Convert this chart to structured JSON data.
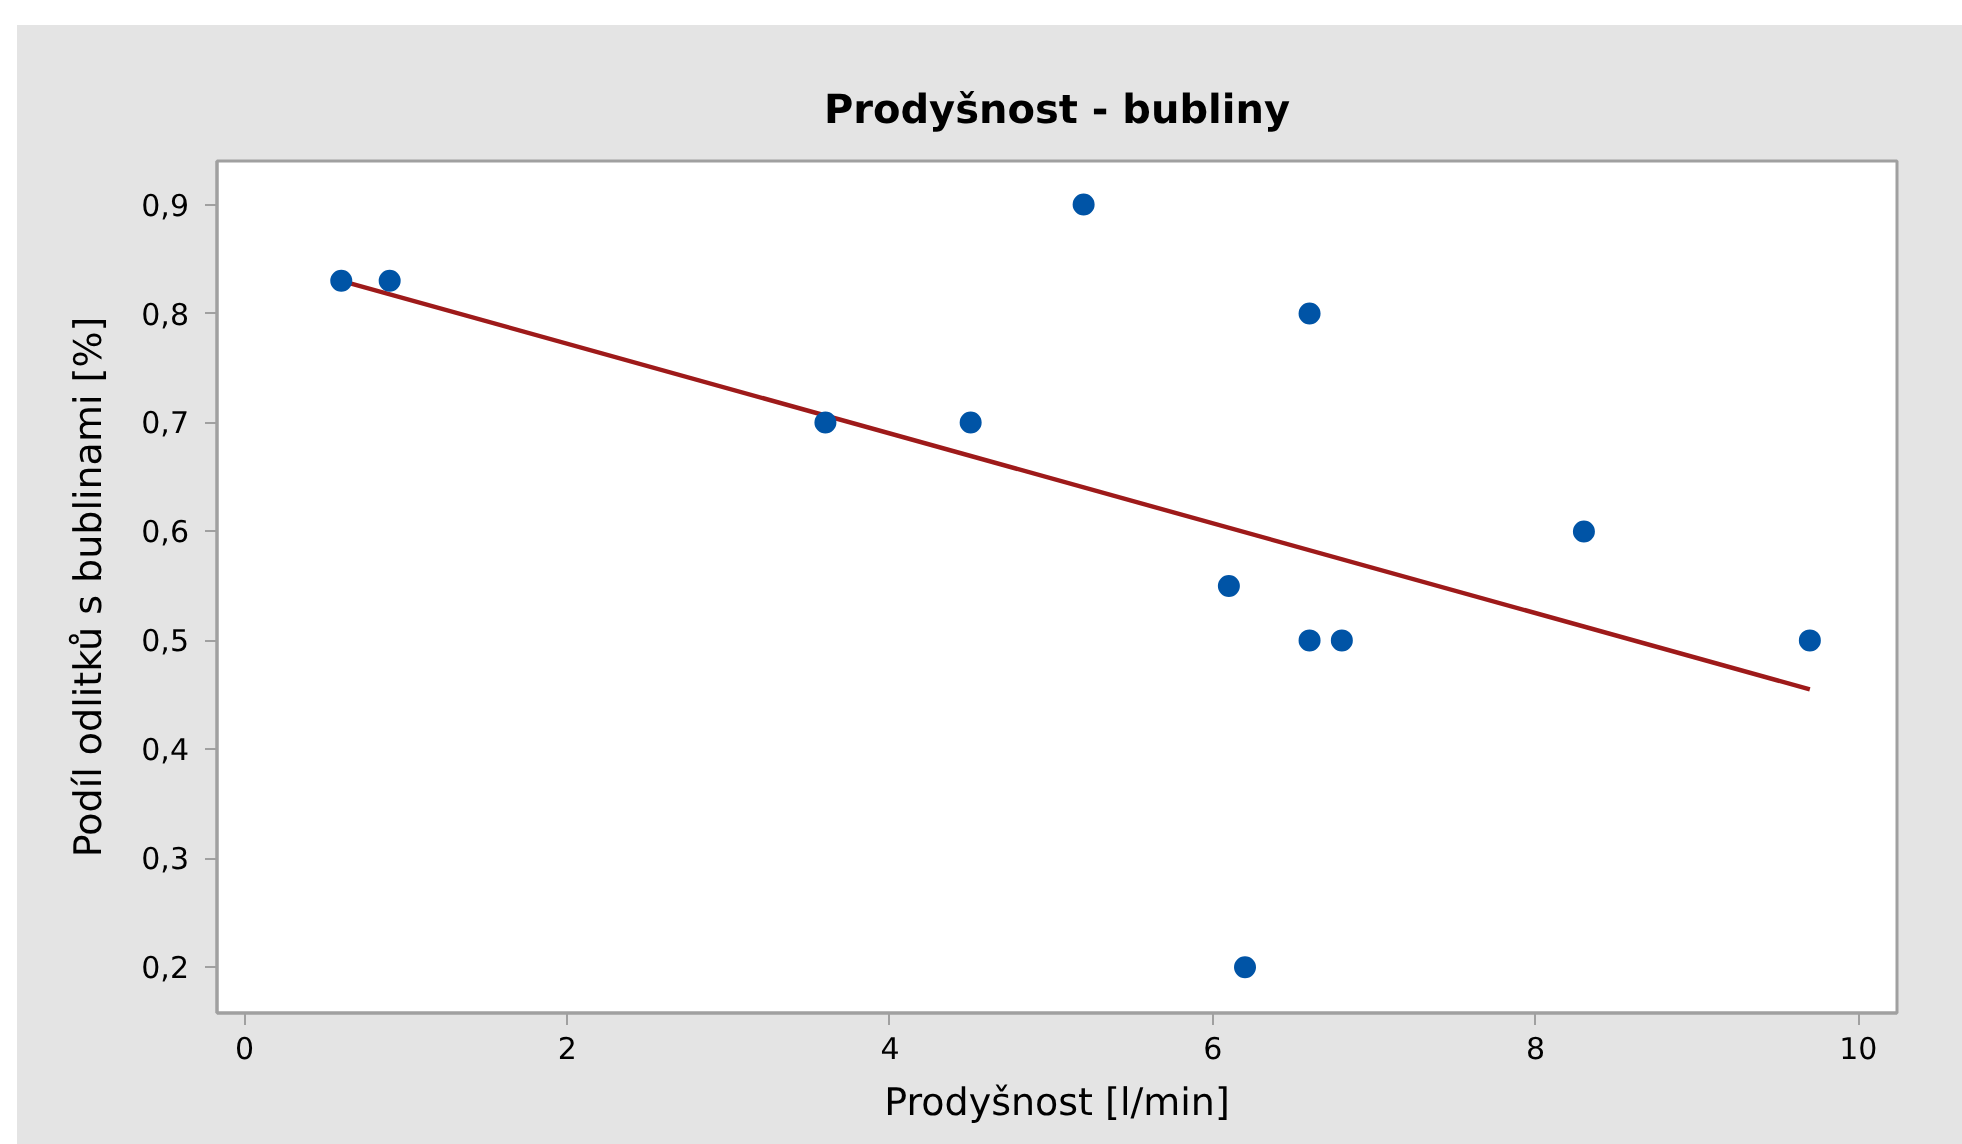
{
  "chart_data": {
    "type": "scatter",
    "title": "Prodyšnost - bubliny",
    "xlabel": "Prodyšnost [l/min]",
    "ylabel": "Podíl odlitků s bublinami [%]",
    "xlim": [
      -0.17,
      10.24
    ],
    "ylim": [
      0.158,
      0.94
    ],
    "xticks": [
      0,
      2,
      4,
      6,
      8,
      10
    ],
    "yticks": [
      {
        "value": 0.2,
        "label": "0,2"
      },
      {
        "value": 0.3,
        "label": "0,3"
      },
      {
        "value": 0.4,
        "label": "0,4"
      },
      {
        "value": 0.5,
        "label": "0,5"
      },
      {
        "value": 0.6,
        "label": "0,6"
      },
      {
        "value": 0.7,
        "label": "0,7"
      },
      {
        "value": 0.8,
        "label": "0,8"
      },
      {
        "value": 0.9,
        "label": "0,9"
      }
    ],
    "grid": false,
    "line_style": "solid",
    "series": [
      {
        "marker": "circle",
        "color": "#0054a6",
        "x": [
          0.6,
          0.9,
          3.6,
          4.5,
          5.2,
          6.1,
          6.2,
          6.6,
          6.6,
          6.8,
          8.3,
          9.7
        ],
        "values": [
          0.83,
          0.83,
          0.7,
          0.7,
          0.9,
          0.55,
          0.2,
          0.8,
          0.5,
          0.5,
          0.6,
          0.5
        ]
      },
      {
        "type": "line",
        "marker": "none",
        "color": "#9e1a1a",
        "x": [
          0.6,
          9.7
        ],
        "values": [
          0.83,
          0.455
        ]
      }
    ]
  }
}
